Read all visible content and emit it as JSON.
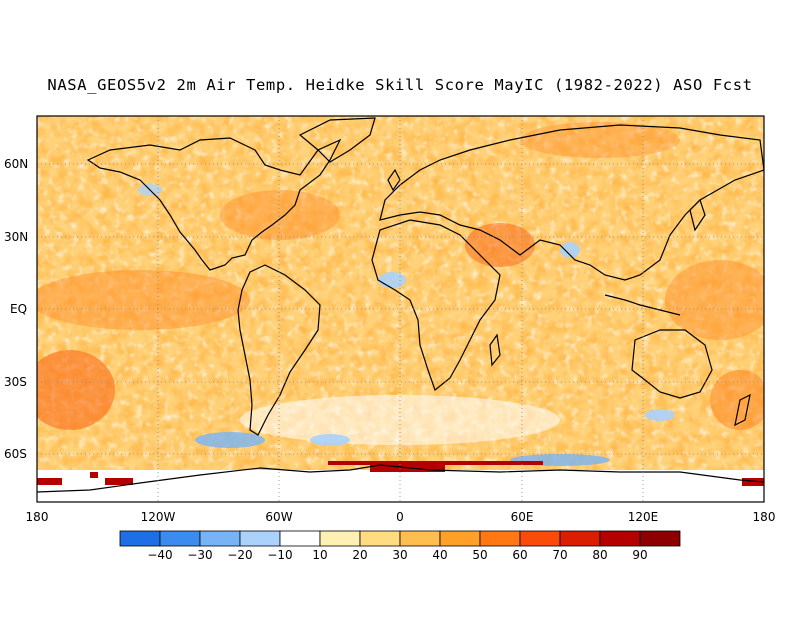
{
  "title": "NASA_GEOS5v2 2m Air Temp. Heidke Skill Score MayIC (1982-2022) ASO Fcst",
  "lat_labels": [
    "60N",
    "30N",
    "EQ",
    "30S",
    "60S"
  ],
  "lon_labels": [
    "180",
    "120W",
    "60W",
    "0",
    "60E",
    "120E",
    "180"
  ],
  "colorbar": {
    "labels": [
      "-40",
      "-30",
      "-20",
      "-10",
      "10",
      "20",
      "30",
      "40",
      "50",
      "60",
      "70",
      "80",
      "90"
    ],
    "colors": [
      "#1e6ee6",
      "#3c8cf0",
      "#78b4f5",
      "#aad2fa",
      "#ffffff",
      "#fff0b4",
      "#ffdc82",
      "#ffbe50",
      "#ffa028",
      "#ff7814",
      "#fa4b0a",
      "#dc1e00",
      "#b40000",
      "#8c0000"
    ]
  },
  "map": {
    "projection": "latitude-longitude",
    "lon_range": [
      -180,
      180
    ],
    "lat_range": [
      -80,
      80
    ],
    "gridlines": "dotted"
  }
}
